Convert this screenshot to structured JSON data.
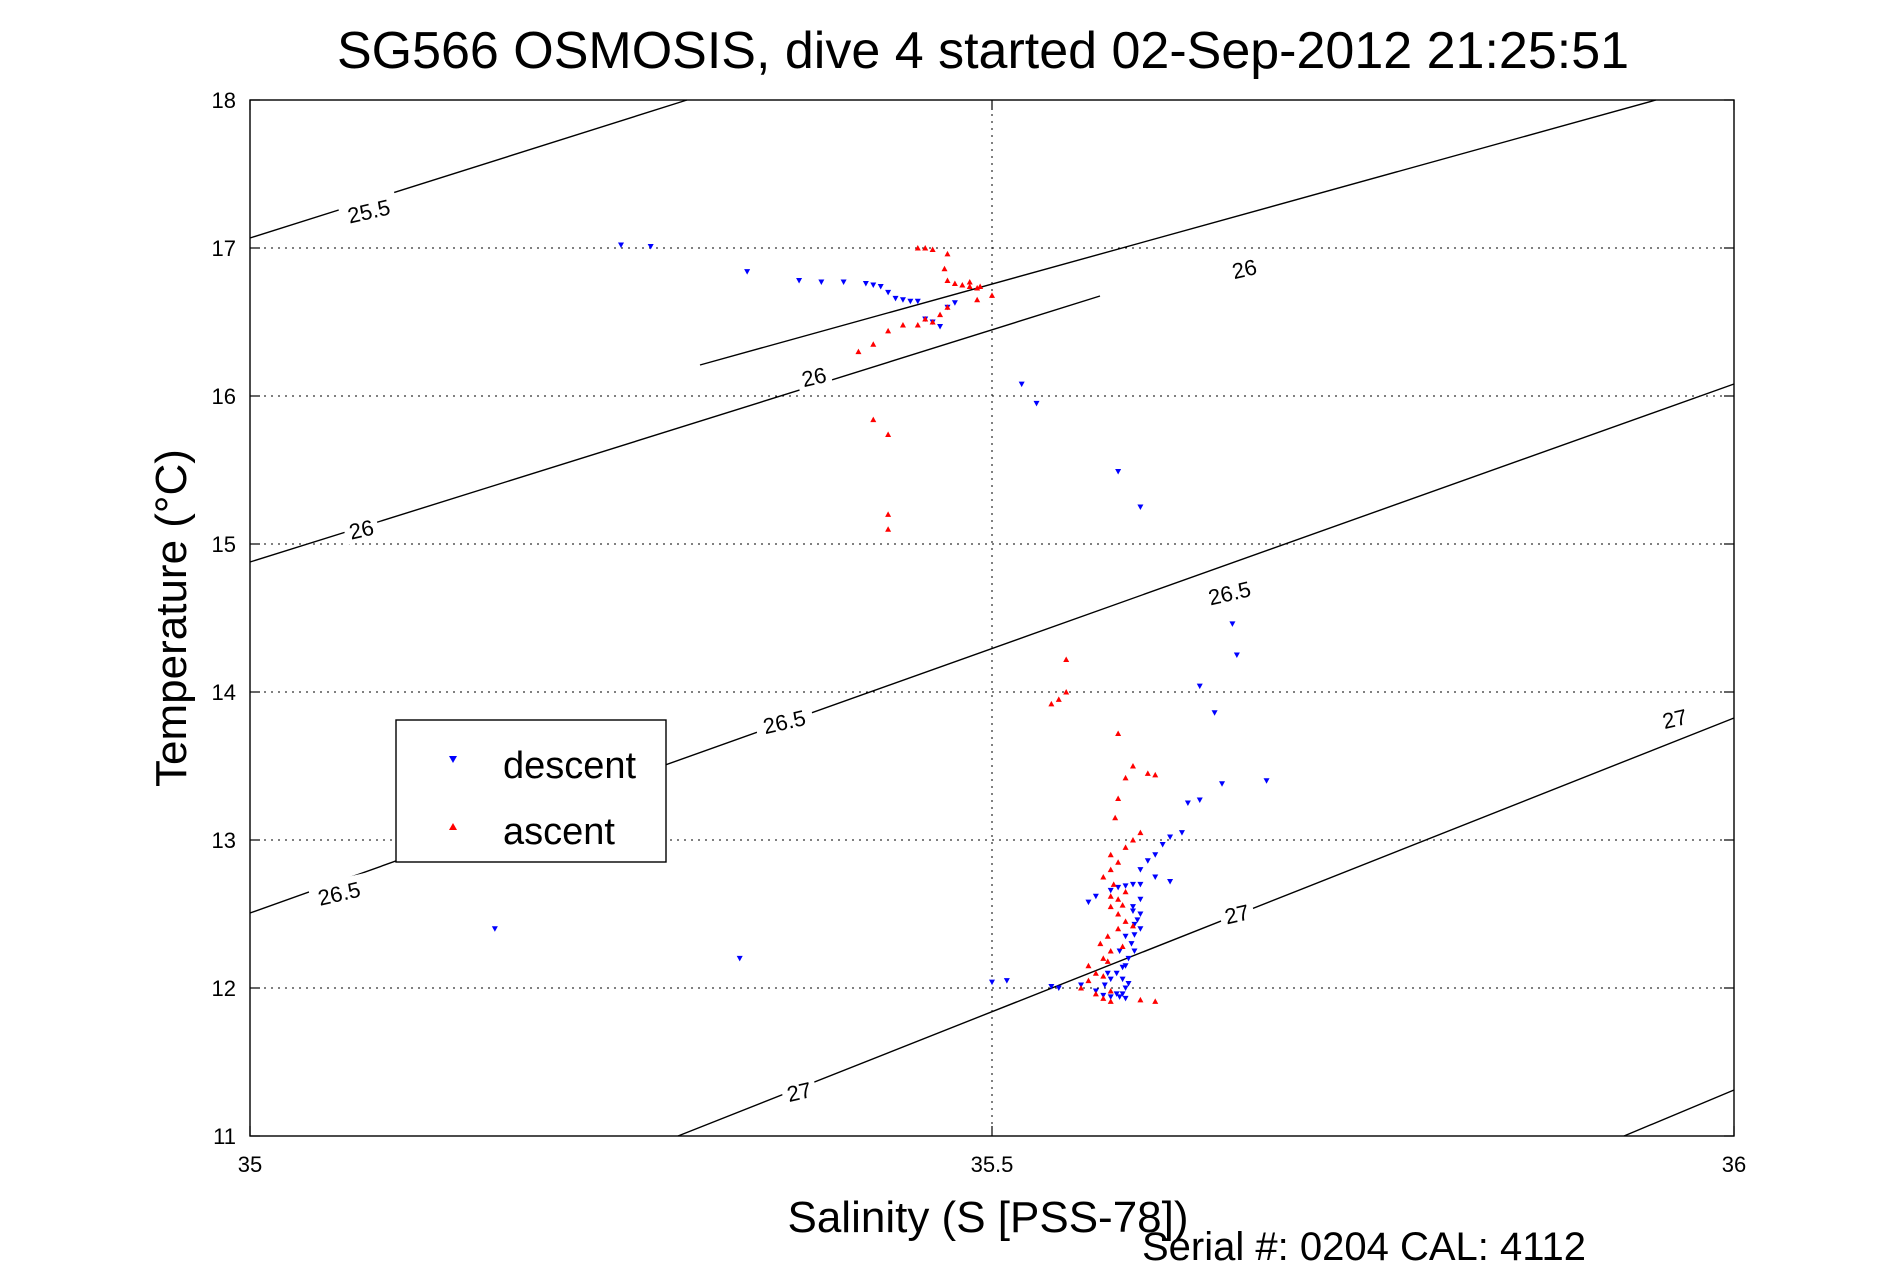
{
  "chart_data": {
    "type": "scatter",
    "title": "SG566 OSMOSIS, dive 4 started 02-Sep-2012 21:25:51",
    "xlabel": "Salinity (S [PSS-78])",
    "ylabel": "Temperature (°C)",
    "xlim": [
      35,
      36
    ],
    "ylim": [
      11,
      18
    ],
    "xticks": [
      35,
      35.5,
      36
    ],
    "xtick_labels": [
      "35",
      "35.5",
      "36"
    ],
    "yticks": [
      11,
      12,
      13,
      14,
      15,
      16,
      17,
      18
    ],
    "ytick_labels": [
      "11",
      "12",
      "13",
      "14",
      "15",
      "16",
      "17",
      "18"
    ],
    "grid": true,
    "legend": {
      "placement": "center-left"
    },
    "footer": "Serial #: 0204  CAL: 4112",
    "series": [
      {
        "name": "descent",
        "color": "#0000ff",
        "marker": "triangle-down",
        "points": [
          [
            35.25,
            17.02
          ],
          [
            35.27,
            17.01
          ],
          [
            35.335,
            16.84
          ],
          [
            35.37,
            16.78
          ],
          [
            35.385,
            16.77
          ],
          [
            35.4,
            16.77
          ],
          [
            35.415,
            16.76
          ],
          [
            35.42,
            16.75
          ],
          [
            35.425,
            16.74
          ],
          [
            35.43,
            16.7
          ],
          [
            35.435,
            16.66
          ],
          [
            35.44,
            16.65
          ],
          [
            35.445,
            16.64
          ],
          [
            35.45,
            16.64
          ],
          [
            35.455,
            16.52
          ],
          [
            35.46,
            16.5
          ],
          [
            35.465,
            16.47
          ],
          [
            35.47,
            16.6
          ],
          [
            35.475,
            16.63
          ],
          [
            35.52,
            16.08
          ],
          [
            35.53,
            15.95
          ],
          [
            35.585,
            15.49
          ],
          [
            35.6,
            15.25
          ],
          [
            35.662,
            14.46
          ],
          [
            35.665,
            14.25
          ],
          [
            35.64,
            14.04
          ],
          [
            35.65,
            13.86
          ],
          [
            35.685,
            13.4
          ],
          [
            35.655,
            13.38
          ],
          [
            35.64,
            13.27
          ],
          [
            35.632,
            13.25
          ],
          [
            35.628,
            13.05
          ],
          [
            35.62,
            13.02
          ],
          [
            35.615,
            12.97
          ],
          [
            35.61,
            12.9
          ],
          [
            35.605,
            12.86
          ],
          [
            35.6,
            12.8
          ],
          [
            35.61,
            12.75
          ],
          [
            35.62,
            12.72
          ],
          [
            35.595,
            12.7
          ],
          [
            35.59,
            12.69
          ],
          [
            35.585,
            12.68
          ],
          [
            35.58,
            12.66
          ],
          [
            35.6,
            12.7
          ],
          [
            35.57,
            12.62
          ],
          [
            35.565,
            12.58
          ],
          [
            35.6,
            12.6
          ],
          [
            35.595,
            12.52
          ],
          [
            35.6,
            12.5
          ],
          [
            35.598,
            12.46
          ],
          [
            35.596,
            12.43
          ],
          [
            35.6,
            12.4
          ],
          [
            35.596,
            12.36
          ],
          [
            35.594,
            12.3
          ],
          [
            35.596,
            12.25
          ],
          [
            35.592,
            12.2
          ],
          [
            35.588,
            12.14
          ],
          [
            35.584,
            12.1
          ],
          [
            35.588,
            12.06
          ],
          [
            35.592,
            12.03
          ],
          [
            35.59,
            12.0
          ],
          [
            35.588,
            11.96
          ],
          [
            35.586,
            11.94
          ],
          [
            35.584,
            11.96
          ],
          [
            35.59,
            11.93
          ],
          [
            35.58,
            11.94
          ],
          [
            35.575,
            11.95
          ],
          [
            35.57,
            11.98
          ],
          [
            35.56,
            12.02
          ],
          [
            35.5,
            12.04
          ],
          [
            35.51,
            12.05
          ],
          [
            35.54,
            12.01
          ],
          [
            35.545,
            12.0
          ],
          [
            35.33,
            12.2
          ],
          [
            35.165,
            12.4
          ],
          [
            35.595,
            12.55
          ],
          [
            35.59,
            12.15
          ],
          [
            35.58,
            12.06
          ],
          [
            35.578,
            12.1
          ],
          [
            35.576,
            12.02
          ],
          [
            35.586,
            12.25
          ],
          [
            35.59,
            12.35
          ]
        ]
      },
      {
        "name": "ascent",
        "color": "#ff0000",
        "marker": "triangle-up",
        "points": [
          [
            35.45,
            17.0
          ],
          [
            35.455,
            17.0
          ],
          [
            35.46,
            16.99
          ],
          [
            35.47,
            16.96
          ],
          [
            35.468,
            16.86
          ],
          [
            35.47,
            16.78
          ],
          [
            35.475,
            16.76
          ],
          [
            35.48,
            16.75
          ],
          [
            35.485,
            16.74
          ],
          [
            35.49,
            16.73
          ],
          [
            35.485,
            16.77
          ],
          [
            35.492,
            16.74
          ],
          [
            35.5,
            16.68
          ],
          [
            35.49,
            16.65
          ],
          [
            35.47,
            16.6
          ],
          [
            35.465,
            16.55
          ],
          [
            35.46,
            16.5
          ],
          [
            35.455,
            16.52
          ],
          [
            35.45,
            16.48
          ],
          [
            35.44,
            16.48
          ],
          [
            35.43,
            16.44
          ],
          [
            35.42,
            16.35
          ],
          [
            35.41,
            16.3
          ],
          [
            35.42,
            15.84
          ],
          [
            35.43,
            15.74
          ],
          [
            35.43,
            15.2
          ],
          [
            35.43,
            15.1
          ],
          [
            35.55,
            14.22
          ],
          [
            35.55,
            14.0
          ],
          [
            35.545,
            13.95
          ],
          [
            35.54,
            13.92
          ],
          [
            35.585,
            13.72
          ],
          [
            35.595,
            13.5
          ],
          [
            35.605,
            13.45
          ],
          [
            35.61,
            13.44
          ],
          [
            35.59,
            13.42
          ],
          [
            35.585,
            13.28
          ],
          [
            35.583,
            13.15
          ],
          [
            35.6,
            13.05
          ],
          [
            35.595,
            13.0
          ],
          [
            35.59,
            12.95
          ],
          [
            35.58,
            12.9
          ],
          [
            35.585,
            12.85
          ],
          [
            35.58,
            12.8
          ],
          [
            35.575,
            12.75
          ],
          [
            35.582,
            12.7
          ],
          [
            35.59,
            12.65
          ],
          [
            35.585,
            12.6
          ],
          [
            35.58,
            12.55
          ],
          [
            35.585,
            12.5
          ],
          [
            35.59,
            12.45
          ],
          [
            35.585,
            12.4
          ],
          [
            35.578,
            12.35
          ],
          [
            35.573,
            12.3
          ],
          [
            35.58,
            12.25
          ],
          [
            35.575,
            12.2
          ],
          [
            35.565,
            12.15
          ],
          [
            35.57,
            12.1
          ],
          [
            35.565,
            12.05
          ],
          [
            35.56,
            12.0
          ],
          [
            35.57,
            11.96
          ],
          [
            35.575,
            11.93
          ],
          [
            35.58,
            11.91
          ],
          [
            35.6,
            11.92
          ],
          [
            35.61,
            11.91
          ],
          [
            35.58,
            11.98
          ],
          [
            35.575,
            12.08
          ],
          [
            35.578,
            12.18
          ],
          [
            35.588,
            12.28
          ],
          [
            35.595,
            12.42
          ],
          [
            35.588,
            12.56
          ],
          [
            35.58,
            12.62
          ]
        ]
      }
    ],
    "contours": [
      {
        "label": "25.5",
        "label_pos": [
          35.08,
          17.25
        ],
        "angle": -13
      },
      {
        "label": "26",
        "label_pos": [
          35.67,
          16.86
        ],
        "angle": -13
      },
      {
        "label": "26",
        "label_pos": [
          35.38,
          16.13
        ],
        "angle": -13
      },
      {
        "label": "26",
        "label_pos": [
          35.075,
          15.1
        ],
        "angle": -13
      },
      {
        "label": "26.5",
        "label_pos": [
          35.66,
          14.67
        ],
        "angle": -13
      },
      {
        "label": "26.5",
        "label_pos": [
          35.36,
          13.8
        ],
        "angle": -13
      },
      {
        "label": "26.5",
        "label_pos": [
          35.06,
          12.64
        ],
        "angle": -13
      },
      {
        "label": "27",
        "label_pos": [
          35.96,
          13.82
        ],
        "angle": -13
      },
      {
        "label": "27",
        "label_pos": [
          35.665,
          12.5
        ],
        "angle": -13
      },
      {
        "label": "27",
        "label_pos": [
          35.37,
          11.3
        ],
        "angle": -13
      }
    ]
  }
}
